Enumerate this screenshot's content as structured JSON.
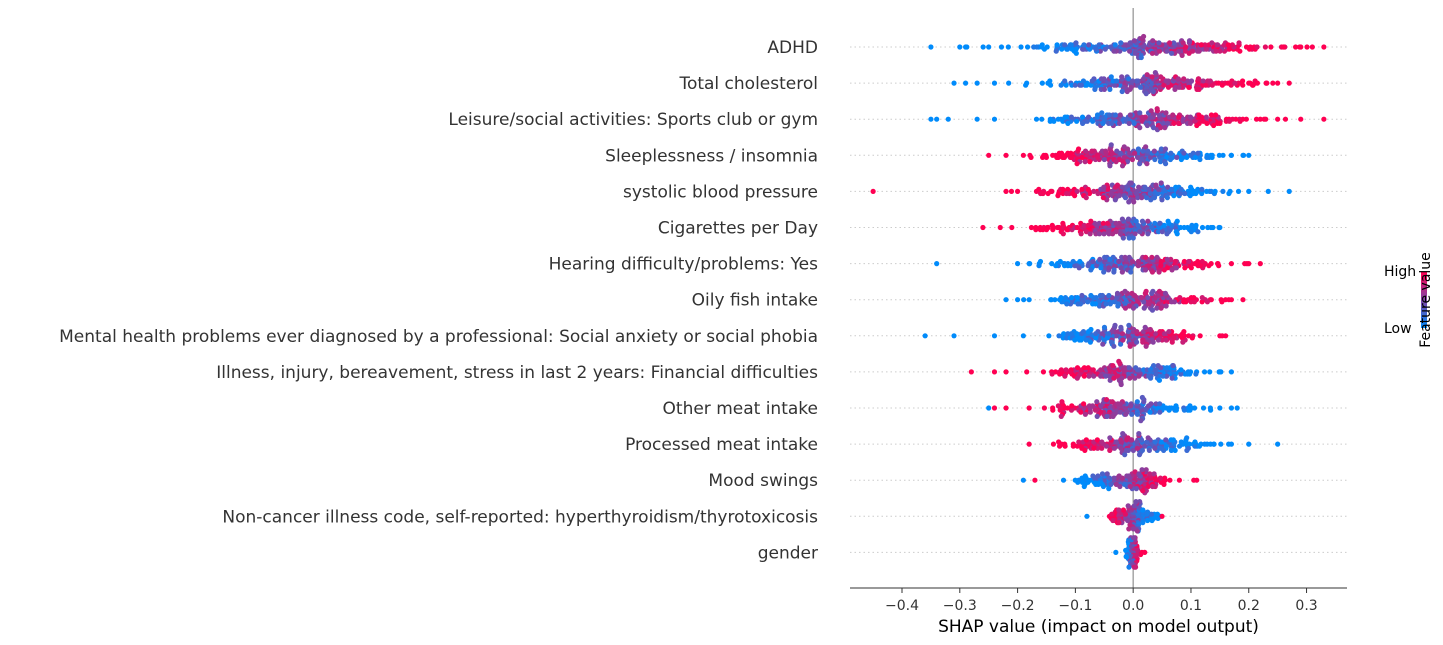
{
  "chart_data": {
    "type": "scatter",
    "subtype": "shap-beeswarm",
    "title": "",
    "xlabel": "SHAP value (impact on model output)",
    "ylabel": "",
    "xlim": [
      -0.49,
      0.37
    ],
    "xticks": [
      "−0.4",
      "−0.3",
      "−0.2",
      "−0.1",
      "0.0",
      "0.1",
      "0.2",
      "0.3"
    ],
    "xtick_values": [
      -0.4,
      -0.3,
      -0.2,
      -0.1,
      0.0,
      0.1,
      0.2,
      0.3
    ],
    "zero_line": true,
    "colorbar": {
      "label": "Feature value",
      "high_label": "High",
      "low_label": "Low",
      "high_color": "#ff0052",
      "low_color": "#008bfb"
    },
    "features": [
      {
        "name": "ADHD",
        "min": -0.35,
        "max": 0.33,
        "spread": 0.22,
        "skew": 0.03,
        "trend": 1,
        "density": 0.5,
        "outliers": [
          [
            -0.35,
            0
          ],
          [
            -0.3,
            0
          ],
          [
            -0.29,
            0
          ],
          [
            -0.25,
            0
          ],
          [
            0.26,
            1
          ],
          [
            0.29,
            1
          ],
          [
            0.31,
            1
          ],
          [
            0.33,
            1
          ]
        ]
      },
      {
        "name": "Total cholesterol",
        "min": -0.31,
        "max": 0.27,
        "spread": 0.18,
        "skew": 0.02,
        "trend": 1,
        "density": 0.46,
        "outliers": [
          [
            -0.31,
            0
          ],
          [
            -0.29,
            0
          ],
          [
            -0.27,
            0
          ],
          [
            -0.24,
            0
          ],
          [
            0.2,
            1
          ],
          [
            0.23,
            1
          ],
          [
            0.25,
            1
          ],
          [
            0.27,
            1
          ]
        ]
      },
      {
        "name": "Leisure/social activities: Sports club or gym",
        "min": -0.35,
        "max": 0.33,
        "spread": 0.18,
        "skew": 0.02,
        "trend": 1,
        "density": 0.46,
        "outliers": [
          [
            -0.35,
            0
          ],
          [
            -0.34,
            0
          ],
          [
            -0.32,
            0
          ],
          [
            -0.27,
            0
          ],
          [
            -0.24,
            0
          ],
          [
            0.22,
            1
          ],
          [
            0.25,
            1
          ],
          [
            0.29,
            1
          ],
          [
            0.33,
            1
          ]
        ]
      },
      {
        "name": "Sleeplessness / insomnia",
        "min": -0.25,
        "max": 0.2,
        "spread": 0.15,
        "skew": 0.0,
        "trend": -1,
        "density": 0.42,
        "outliers": [
          [
            -0.25,
            1
          ],
          [
            -0.22,
            1
          ],
          [
            -0.19,
            1
          ],
          [
            0.17,
            0
          ],
          [
            0.19,
            0
          ],
          [
            0.2,
            0
          ]
        ]
      },
      {
        "name": "systolic blood pressure",
        "min": -0.45,
        "max": 0.27,
        "spread": 0.16,
        "skew": 0.0,
        "trend": -1,
        "density": 0.42,
        "outliers": [
          [
            -0.45,
            1
          ],
          [
            -0.22,
            1
          ],
          [
            -0.2,
            1
          ],
          [
            0.2,
            0
          ],
          [
            0.27,
            0
          ]
        ]
      },
      {
        "name": "Cigarettes per Day",
        "min": -0.26,
        "max": 0.15,
        "spread": 0.14,
        "skew": -0.01,
        "trend": -1,
        "density": 0.42,
        "outliers": [
          [
            -0.26,
            1
          ],
          [
            -0.23,
            1
          ],
          [
            -0.21,
            1
          ],
          [
            0.12,
            0
          ],
          [
            0.15,
            0
          ]
        ]
      },
      {
        "name": "Hearing difficulty/problems: Yes",
        "min": -0.34,
        "max": 0.22,
        "spread": 0.15,
        "skew": 0.0,
        "trend": 1,
        "density": 0.4,
        "outliers": [
          [
            -0.34,
            0
          ],
          [
            -0.2,
            0
          ],
          [
            -0.18,
            0
          ],
          [
            0.17,
            1
          ],
          [
            0.2,
            1
          ],
          [
            0.22,
            1
          ]
        ]
      },
      {
        "name": "Oily fish intake",
        "min": -0.22,
        "max": 0.19,
        "spread": 0.14,
        "skew": 0.0,
        "trend": 1,
        "density": 0.4,
        "outliers": [
          [
            -0.22,
            0
          ],
          [
            -0.2,
            0
          ],
          [
            -0.18,
            0
          ],
          [
            0.17,
            1
          ],
          [
            0.19,
            1
          ]
        ]
      },
      {
        "name": "Mental health problems ever diagnosed by a professional: Social anxiety or social phobia",
        "min": -0.36,
        "max": 0.16,
        "spread": 0.12,
        "skew": -0.01,
        "trend": 1,
        "density": 0.38,
        "outliers": [
          [
            -0.36,
            0
          ],
          [
            -0.31,
            0
          ],
          [
            -0.24,
            0
          ],
          [
            -0.19,
            0
          ],
          [
            0.15,
            1
          ],
          [
            0.16,
            1
          ]
        ]
      },
      {
        "name": "Illness, injury, bereavement, stress in last 2 years: Financial difficulties",
        "min": -0.28,
        "max": 0.17,
        "spread": 0.13,
        "skew": -0.01,
        "trend": -1,
        "density": 0.38,
        "outliers": [
          [
            -0.28,
            1
          ],
          [
            -0.24,
            1
          ],
          [
            -0.22,
            1
          ],
          [
            0.15,
            0
          ],
          [
            0.17,
            0
          ]
        ]
      },
      {
        "name": "Other meat intake",
        "min": -0.25,
        "max": 0.18,
        "spread": 0.13,
        "skew": -0.02,
        "trend": -1,
        "density": 0.36,
        "outliers": [
          [
            -0.25,
            0
          ],
          [
            -0.24,
            1
          ],
          [
            -0.22,
            1
          ],
          [
            0.1,
            0
          ],
          [
            0.15,
            0
          ],
          [
            0.17,
            0
          ],
          [
            0.18,
            0
          ]
        ]
      },
      {
        "name": "Processed meat intake",
        "min": -0.18,
        "max": 0.25,
        "spread": 0.12,
        "skew": 0.0,
        "trend": -1,
        "density": 0.36,
        "outliers": [
          [
            -0.18,
            1
          ],
          [
            0.14,
            0
          ],
          [
            0.17,
            0
          ],
          [
            0.2,
            0
          ],
          [
            0.25,
            0
          ]
        ]
      },
      {
        "name": "Mood swings",
        "min": -0.19,
        "max": 0.11,
        "spread": 0.08,
        "skew": -0.01,
        "trend": 1,
        "density": 0.3,
        "outliers": [
          [
            -0.19,
            0
          ],
          [
            -0.17,
            1
          ],
          [
            0.11,
            1
          ]
        ]
      },
      {
        "name": "Non-cancer illness code, self-reported: hyperthyroidism/thyrotoxicosis",
        "min": -0.08,
        "max": 0.05,
        "spread": 0.04,
        "skew": 0.0,
        "trend": -1,
        "density": 0.22,
        "outliers": [
          [
            -0.08,
            0
          ],
          [
            0.05,
            1
          ]
        ]
      },
      {
        "name": "gender",
        "min": -0.03,
        "max": 0.02,
        "spread": 0.012,
        "skew": 0.0,
        "trend": 1,
        "density": 0.18,
        "outliers": [
          [
            -0.03,
            0
          ],
          [
            0.02,
            1
          ]
        ]
      }
    ]
  }
}
